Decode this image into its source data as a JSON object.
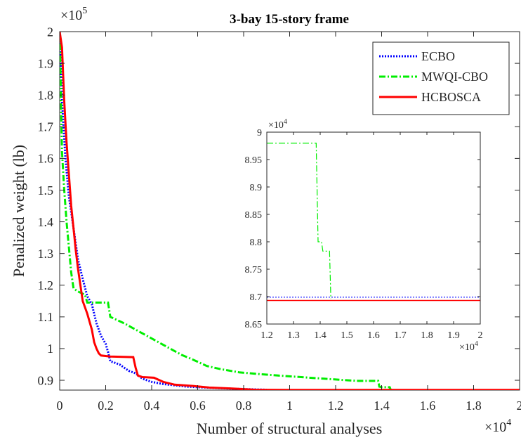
{
  "chart_data": [
    {
      "type": "line",
      "title": "3-bay 15-story frame",
      "xlabel": "Number of structural analyses",
      "ylabel": "Penalized weight (lb)",
      "x_multiplier": "×10",
      "x_exponent": "4",
      "y_multiplier": "×10",
      "y_exponent": "5",
      "xlim": [
        0,
        20000
      ],
      "ylim": [
        86900,
        200000
      ],
      "x_ticks": [
        0,
        2000,
        4000,
        6000,
        8000,
        10000,
        12000,
        14000,
        16000,
        18000,
        20000
      ],
      "x_tick_labels": [
        "0",
        "0.2",
        "0.4",
        "0.6",
        "0.8",
        "1",
        "1.2",
        "1.4",
        "1.6",
        "1.8",
        "2"
      ],
      "y_ticks": [
        90000,
        100000,
        110000,
        120000,
        130000,
        140000,
        150000,
        160000,
        170000,
        180000,
        190000,
        200000
      ],
      "y_tick_labels": [
        "0.9",
        "1",
        "1.1",
        "1.2",
        "1.3",
        "1.4",
        "1.5",
        "1.6",
        "1.7",
        "1.8",
        "1.9",
        "2"
      ],
      "legend_position": "top-right",
      "series": [
        {
          "name": "ECBO",
          "color": "#0000ff",
          "style": "dotted",
          "points": [
            [
              0,
              200000
            ],
            [
              100,
              178000
            ],
            [
              250,
              160000
            ],
            [
              400,
              148000
            ],
            [
              600,
              138000
            ],
            [
              800,
              128000
            ],
            [
              1000,
              122000
            ],
            [
              1200,
              116500
            ],
            [
              1400,
              114000
            ],
            [
              1600,
              108000
            ],
            [
              1800,
              104000
            ],
            [
              2000,
              101500
            ],
            [
              2100,
              99000
            ],
            [
              2200,
              96000
            ],
            [
              2400,
              95500
            ],
            [
              2600,
              95000
            ],
            [
              2800,
              94000
            ],
            [
              3000,
              93000
            ],
            [
              3300,
              92200
            ],
            [
              3600,
              90500
            ],
            [
              4000,
              89500
            ],
            [
              4500,
              88800
            ],
            [
              5000,
              88400
            ],
            [
              5500,
              88000
            ],
            [
              6000,
              87800
            ],
            [
              7000,
              87500
            ],
            [
              8000,
              87200
            ],
            [
              9000,
              87000
            ]
          ]
        },
        {
          "name": "MWQI-CBO",
          "color": "#00ee00",
          "style": "dashdot",
          "points": [
            [
              0,
              200000
            ],
            [
              100,
              162000
            ],
            [
              200,
              150000
            ],
            [
              300,
              140000
            ],
            [
              400,
              132000
            ],
            [
              500,
              124000
            ],
            [
              600,
              119000
            ],
            [
              800,
              118000
            ],
            [
              1100,
              117000
            ],
            [
              1200,
              114500
            ],
            [
              2100,
              114500
            ],
            [
              2200,
              110000
            ],
            [
              2800,
              108000
            ],
            [
              3300,
              106000
            ],
            [
              3800,
              104000
            ],
            [
              4300,
              102000
            ],
            [
              4800,
              100000
            ],
            [
              5300,
              98000
            ],
            [
              5800,
              96500
            ],
            [
              6400,
              94500
            ],
            [
              7000,
              93500
            ],
            [
              7800,
              92500
            ],
            [
              8600,
              92000
            ],
            [
              9500,
              91500
            ],
            [
              10500,
              91000
            ],
            [
              11500,
              90500
            ],
            [
              12500,
              90000
            ],
            [
              13000,
              89800
            ],
            [
              13850,
              89800
            ],
            [
              13900,
              88000
            ],
            [
              14000,
              87800
            ],
            [
              14350,
              87800
            ],
            [
              14400,
              86950
            ]
          ]
        },
        {
          "name": "HCBOSCA",
          "color": "#ff0000",
          "style": "solid",
          "points": [
            [
              0,
              200000
            ],
            [
              100,
              195000
            ],
            [
              200,
              178000
            ],
            [
              300,
              165000
            ],
            [
              400,
              155000
            ],
            [
              500,
              145000
            ],
            [
              600,
              138000
            ],
            [
              700,
              131000
            ],
            [
              800,
              125000
            ],
            [
              900,
              120000
            ],
            [
              1000,
              115000
            ],
            [
              1200,
              111000
            ],
            [
              1400,
              106000
            ],
            [
              1500,
              102000
            ],
            [
              1600,
              100000
            ],
            [
              1700,
              98500
            ],
            [
              1800,
              97800
            ],
            [
              2200,
              97500
            ],
            [
              3200,
              97300
            ],
            [
              3300,
              94000
            ],
            [
              3400,
              91500
            ],
            [
              3600,
              91000
            ],
            [
              4100,
              90800
            ],
            [
              4500,
              89500
            ],
            [
              5000,
              88600
            ],
            [
              5800,
              88200
            ],
            [
              6500,
              87700
            ],
            [
              7500,
              87400
            ],
            [
              8500,
              87000
            ],
            [
              10000,
              86950
            ],
            [
              20000,
              86950
            ]
          ]
        }
      ]
    },
    {
      "type": "line",
      "title": "",
      "y_multiplier": "×10",
      "y_exponent": "4",
      "x_multiplier": "×10",
      "x_exponent": "4",
      "xlim": [
        12000,
        20000
      ],
      "ylim": [
        86500,
        90000
      ],
      "x_ticks": [
        12000,
        13000,
        14000,
        15000,
        16000,
        17000,
        18000,
        19000,
        20000
      ],
      "x_tick_labels": [
        "1.2",
        "1.3",
        "1.4",
        "1.5",
        "1.6",
        "1.7",
        "1.8",
        "1.9",
        "2"
      ],
      "y_ticks": [
        86500,
        87000,
        87500,
        88000,
        88500,
        89000,
        89500,
        90000
      ],
      "y_tick_labels": [
        "8.65",
        "8.7",
        "8.75",
        "8.8",
        "8.85",
        "8.9",
        "8.95",
        "9"
      ],
      "series": [
        {
          "name": "ECBO",
          "color": "#0000ff",
          "style": "dotted",
          "points": [
            [
              12000,
              86990
            ],
            [
              20000,
              86990
            ]
          ]
        },
        {
          "name": "MWQI-CBO",
          "color": "#00ee00",
          "style": "dashdot",
          "points": [
            [
              12000,
              89800
            ],
            [
              13850,
              89800
            ],
            [
              13920,
              88000
            ],
            [
              14050,
              88000
            ],
            [
              14100,
              87830
            ],
            [
              14350,
              87830
            ],
            [
              14400,
              86960
            ]
          ]
        },
        {
          "name": "HCBOSCA",
          "color": "#ff0000",
          "style": "solid",
          "points": [
            [
              12000,
              86930
            ],
            [
              20000,
              86930
            ]
          ]
        }
      ]
    }
  ]
}
